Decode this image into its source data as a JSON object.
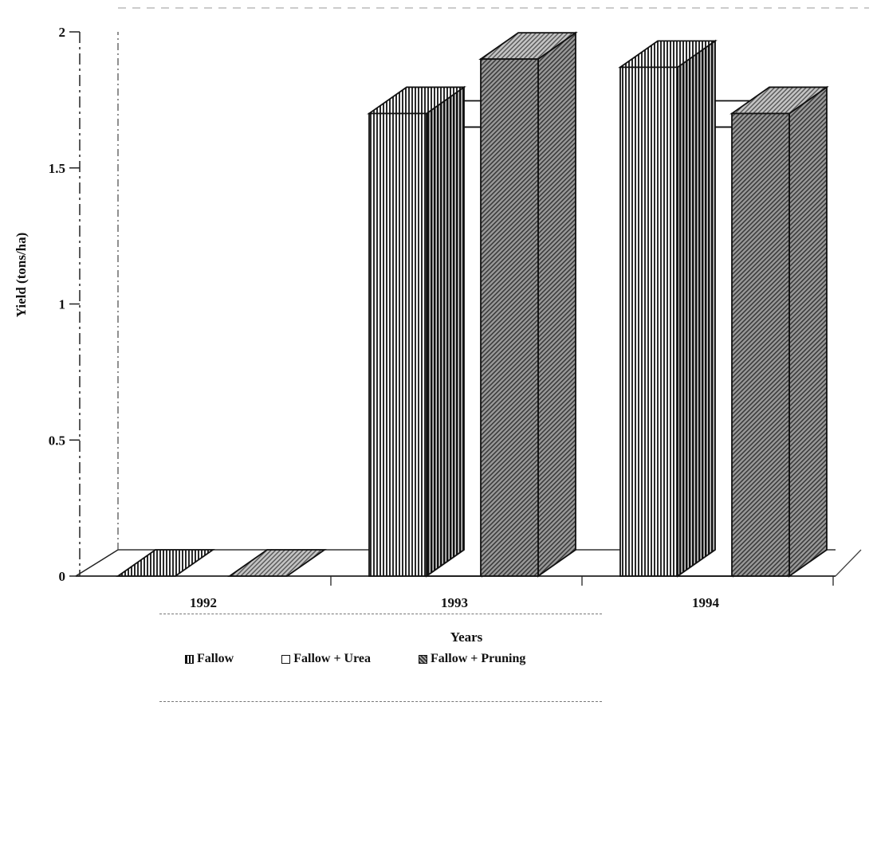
{
  "chart_data": {
    "type": "bar",
    "title": "",
    "xlabel": "Years",
    "ylabel": "Yield (tons/ha)",
    "categories": [
      "1992",
      "1993",
      "1994"
    ],
    "y_ticks": [
      "0",
      "0.5",
      "1",
      "1.5",
      "2"
    ],
    "ylim": [
      0,
      2
    ],
    "series": [
      {
        "name": "Fallow",
        "values": [
          0.0,
          1.7,
          1.87
        ]
      },
      {
        "name": "Fallow + Urea",
        "values": [
          0.0,
          1.65,
          1.65
        ]
      },
      {
        "name": "Fallow + Pruning",
        "values": [
          0.0,
          1.9,
          1.7
        ]
      }
    ],
    "legend_position": "bottom",
    "grid": false
  }
}
